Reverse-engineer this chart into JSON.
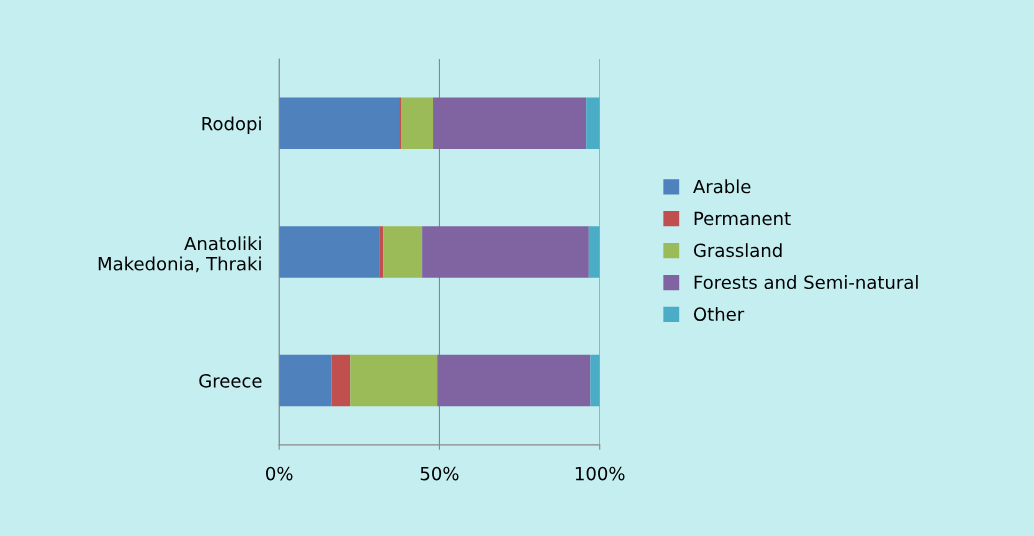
{
  "chart_data": {
    "type": "bar",
    "orientation": "horizontal",
    "stacked": true,
    "categories": [
      "Rodopi",
      "Anatoliki\nMakedonia, Thraki",
      "Greece"
    ],
    "series": [
      {
        "name": "Arable",
        "color": "#4f81bd",
        "values": [
          37.4,
          31.2,
          16.3
        ]
      },
      {
        "name": "Permanent",
        "color": "#c0504d",
        "values": [
          0.6,
          1.3,
          5.9
        ]
      },
      {
        "name": "Grassland",
        "color": "#9bbb59",
        "values": [
          10.0,
          12.1,
          27.1
        ]
      },
      {
        "name": "Forests and Semi-natural",
        "color": "#8064a2",
        "values": [
          47.8,
          52.0,
          47.8
        ]
      },
      {
        "name": "Other",
        "color": "#4bacc6",
        "values": [
          4.2,
          3.4,
          2.9
        ]
      }
    ],
    "xlim": [
      0,
      100
    ],
    "xticks": [
      {
        "value": 0,
        "label": "0%"
      },
      {
        "value": 50,
        "label": "50%"
      },
      {
        "value": 100,
        "label": "100%"
      }
    ],
    "grid": "x",
    "legend": "right"
  }
}
